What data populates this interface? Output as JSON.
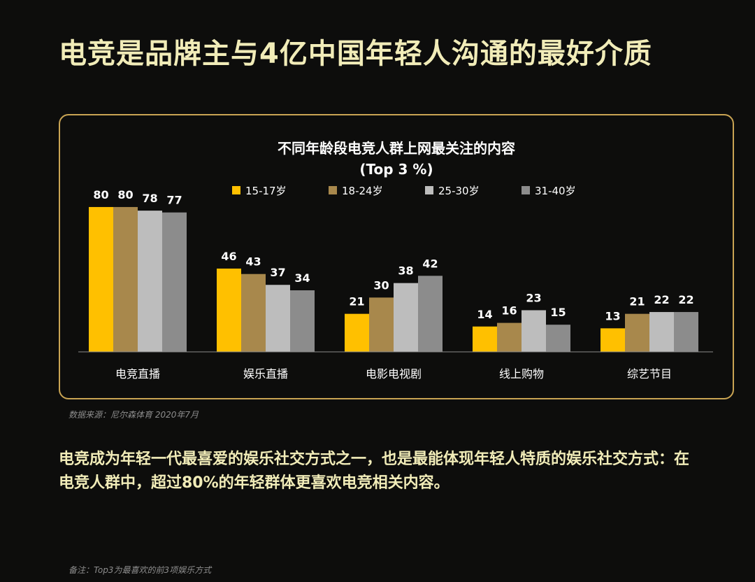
{
  "page_title": "电竞是品牌主与4亿中国年轻人沟通的最好介质",
  "source": "数据来源：尼尔森体育 2020年7月",
  "summary": {
    "line1": "电竞成为年轻一代最喜爱的娱乐社交方式之一，也是最能体现年轻人特质的娱乐社交方式：在",
    "line2": "电竞人群中，超过80%的年轻群体更喜欢电竞相关内容。"
  },
  "footnote": "备注：Top3为最喜欢的前3项娱乐方式",
  "colors": {
    "background": "#0d0d0c",
    "title": "#f1ecb8",
    "frame": "#c9a453",
    "text": "#ffffff"
  },
  "chart_data": {
    "type": "bar",
    "title": "不同年龄段电竞人群上网最关注的内容",
    "subtitle": "(Top 3 %)",
    "legend_position": "top",
    "grid": false,
    "ylim": [
      0,
      85
    ],
    "categories": [
      "电竞直播",
      "娱乐直播",
      "电影电视剧",
      "线上购物",
      "综艺节目"
    ],
    "series": [
      {
        "name": "15-17岁",
        "color": "#ffc000",
        "values": [
          80,
          46,
          21,
          14,
          13
        ]
      },
      {
        "name": "18-24岁",
        "color": "#a8884c",
        "values": [
          80,
          43,
          30,
          16,
          21
        ]
      },
      {
        "name": "25-30岁",
        "color": "#bdbdbd",
        "values": [
          78,
          37,
          38,
          23,
          22
        ]
      },
      {
        "name": "31-40岁",
        "color": "#8c8c8c",
        "values": [
          77,
          34,
          42,
          15,
          22
        ]
      }
    ]
  }
}
